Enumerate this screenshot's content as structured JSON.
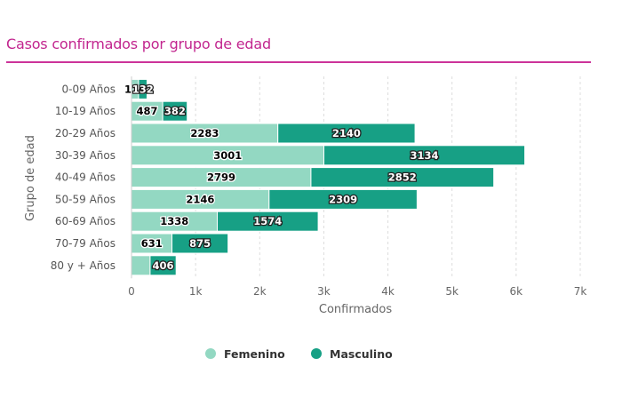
{
  "header": {
    "title": "Casos confirmados por grupo de edad"
  },
  "colors": {
    "title": "#c2268f",
    "rule": "#cc3399",
    "femenino": "#93d8c2",
    "masculino": "#17a085",
    "grid": "#dddddd"
  },
  "chart_data": {
    "type": "bar",
    "orientation": "horizontal",
    "stacked": true,
    "title": "Casos confirmados por grupo de edad",
    "xlabel": "Confirmados",
    "ylabel": "Grupo de edad",
    "categories": [
      "0-09 Años",
      "10-19 Años",
      "20-29 Años",
      "30-39 Años",
      "40-49 Años",
      "50-59 Años",
      "60-69 Años",
      "70-79 Años",
      "80 y + Años"
    ],
    "series": [
      {
        "name": "Femenino",
        "values": [
          110,
          487,
          2283,
          3001,
          2799,
          2146,
          1338,
          631,
          290
        ],
        "labels_shown": [
          true,
          true,
          true,
          true,
          true,
          true,
          true,
          true,
          false
        ]
      },
      {
        "name": "Masculino",
        "values": [
          132,
          382,
          2140,
          3134,
          2852,
          2309,
          1574,
          875,
          406
        ],
        "labels_shown": [
          true,
          true,
          true,
          true,
          true,
          true,
          true,
          true,
          true
        ]
      }
    ],
    "xlim": [
      0,
      7000
    ],
    "xticks": [
      0,
      1000,
      2000,
      3000,
      4000,
      5000,
      6000,
      7000
    ],
    "xtick_labels": [
      "0",
      "1k",
      "2k",
      "3k",
      "4k",
      "5k",
      "6k",
      "7k"
    ],
    "grid": "vertical dashed",
    "legend": {
      "position": "bottom-center",
      "entries": [
        "Femenino",
        "Masculino"
      ]
    }
  }
}
